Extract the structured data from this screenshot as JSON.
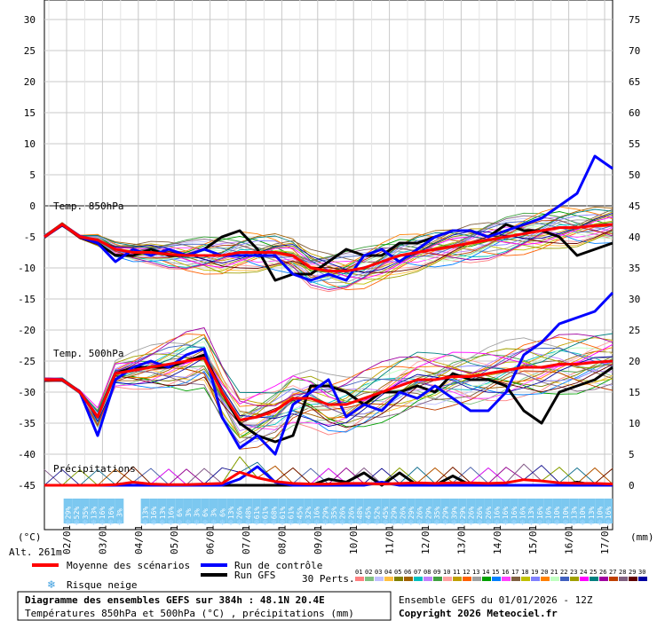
{
  "chart_data": {
    "type": "line",
    "title": "Diagramme des ensembles GEFS sur 384h : 48.1N 20.4E",
    "subtitle": "Températures 850hPa et 500hPa (°C) , précipitations (mm)",
    "run_label": "Ensemble GEFS du 01/01/2026 - 12Z",
    "copyright": "Copyright 2026 Meteociel.fr",
    "altitude": "Alt. 261m",
    "left_unit": "(°C)",
    "right_unit": "(mm)",
    "left_ticks": [
      30,
      25,
      20,
      15,
      10,
      5,
      0,
      -5,
      -10,
      -15,
      -20,
      -25,
      -30,
      -35,
      -40,
      -45
    ],
    "right_ticks": [
      75,
      70,
      65,
      60,
      55,
      50,
      45,
      40,
      35,
      30,
      25,
      20,
      15,
      10,
      5,
      0
    ],
    "ylim": [
      -45,
      30
    ],
    "x_ticks": [
      "02/01",
      "03/01",
      "04/01",
      "05/01",
      "06/01",
      "07/01",
      "08/01",
      "09/01",
      "10/01",
      "11/01",
      "12/01",
      "13/01",
      "14/01",
      "15/01",
      "16/01",
      "17/01"
    ],
    "section_labels": {
      "t850": "Temp. 850hPa",
      "t500": "Temp. 500hPa",
      "precip": "Précipitations"
    },
    "snow_risk": [
      "",
      "29%",
      "52%",
      "35%",
      "13%",
      "16%",
      "16%",
      "3%",
      "",
      "",
      "13%",
      "16%",
      "13%",
      "16%",
      "6%",
      "3%",
      "3%",
      "6%",
      "3%",
      "6%",
      "13%",
      "26%",
      "48%",
      "61%",
      "61%",
      "68%",
      "61%",
      "61%",
      "45%",
      "32%",
      "16%",
      "29%",
      "35%",
      "26%",
      "26%",
      "48%",
      "45%",
      "52%",
      "45%",
      "29%",
      "26%",
      "29%",
      "26%",
      "29%",
      "35%",
      "29%",
      "39%",
      "29%",
      "26%",
      "26%",
      "26%",
      "16%",
      "16%",
      "16%",
      "16%",
      "13%",
      "16%",
      "16%",
      "10%",
      "10%",
      "13%",
      "10%",
      "13%",
      "10%",
      "16%"
    ],
    "series": [
      {
        "name": "Moyenne des scénarios",
        "color": "#ff0000",
        "t850": [
          -5,
          -3,
          -5,
          -5.5,
          -7,
          -7.5,
          -7.5,
          -7.8,
          -8,
          -8,
          -8,
          -7.5,
          -7.5,
          -7.5,
          -8,
          -10,
          -10.5,
          -10.5,
          -10,
          -9,
          -8,
          -7.5,
          -7,
          -6.5,
          -6,
          -5.5,
          -5,
          -4.5,
          -4,
          -3.5,
          -3.5,
          -3.2,
          -3
        ],
        "t500": [
          -28,
          -28,
          -30,
          -34,
          -27,
          -26.5,
          -26,
          -25.5,
          -25,
          -24.5,
          -30,
          -34.5,
          -34,
          -33,
          -31,
          -31,
          -32,
          -32,
          -31,
          -30,
          -29,
          -28,
          -28,
          -27.5,
          -27.5,
          -27,
          -26.5,
          -26,
          -26,
          -25.5,
          -25.5,
          -25.2,
          -25
        ],
        "precip": [
          0,
          0,
          0,
          0,
          0.1,
          0.5,
          0.2,
          0.1,
          0.1,
          0.2,
          0.3,
          2.1,
          1.2,
          0.6,
          0.3,
          0.2,
          0.2,
          0.3,
          0.3,
          0.2,
          0.3,
          0.4,
          0.3,
          0.4,
          0.4,
          0.3,
          0.4,
          0.9,
          0.7,
          0.4,
          0.3,
          0.3,
          0.2
        ]
      },
      {
        "name": "Run de contrôle",
        "color": "#0000ff",
        "t850": [
          -5,
          -3,
          -5,
          -6,
          -9,
          -7,
          -8,
          -7,
          -8,
          -7,
          -8,
          -8,
          -8,
          -8,
          -11,
          -12,
          -11,
          -12,
          -8,
          -7,
          -9,
          -7,
          -5,
          -4,
          -4,
          -5,
          -4,
          -3,
          -2,
          0,
          2,
          8,
          6
        ],
        "t500": [
          -28,
          -28,
          -30,
          -37,
          -28,
          -26,
          -25,
          -26,
          -24,
          -23,
          -34,
          -39,
          -37,
          -40,
          -32,
          -30,
          -28,
          -34,
          -32,
          -33,
          -30,
          -31,
          -29,
          -31,
          -33,
          -33,
          -30,
          -24,
          -22,
          -19,
          -18,
          -17,
          -14
        ],
        "precip": [
          0,
          0,
          0,
          0,
          0,
          0,
          0,
          0,
          0,
          0,
          0,
          1,
          3,
          0.5,
          0,
          0,
          0,
          0,
          0,
          0.5,
          0,
          0,
          0,
          0,
          0,
          0,
          0,
          0,
          0,
          0,
          0,
          0,
          0
        ]
      },
      {
        "name": "Run GFS",
        "color": "#000000",
        "t850": [
          -5,
          -3,
          -5,
          -6,
          -8,
          -8,
          -7,
          -8,
          -8,
          -7,
          -5,
          -4,
          -7,
          -12,
          -11,
          -11,
          -9,
          -7,
          -8,
          -8,
          -6,
          -6,
          -5,
          -4,
          -4,
          -5,
          -3,
          -4,
          -4,
          -5,
          -8,
          -7,
          -6
        ],
        "t500": [
          -28,
          -28,
          -30,
          -34,
          -27,
          -26,
          -26,
          -26,
          -25,
          -24,
          -30,
          -35,
          -37,
          -38,
          -37,
          -29,
          -29,
          -30,
          -32,
          -30,
          -30,
          -29,
          -30,
          -27,
          -28,
          -28,
          -29,
          -33,
          -35,
          -30,
          -29,
          -28,
          -26
        ],
        "precip": [
          0,
          0,
          0,
          0,
          0,
          0,
          0,
          0,
          0,
          0,
          0,
          0,
          0,
          0,
          0,
          0,
          1,
          0.5,
          2,
          0,
          2,
          0,
          0,
          1.5,
          0,
          0,
          0,
          0,
          0,
          0,
          0.5,
          0,
          0
        ]
      }
    ],
    "legend": {
      "mean": "Moyenne des scénarios",
      "control": "Run de contrôle",
      "gfs": "Run GFS",
      "snow": "Risque neige",
      "perts": "30 Perts."
    },
    "perturbation_labels": [
      "01",
      "02",
      "03",
      "04",
      "05",
      "06",
      "07",
      "08",
      "09",
      "10",
      "11",
      "12",
      "13",
      "14",
      "15",
      "16",
      "17",
      "18",
      "19",
      "20",
      "21",
      "22",
      "23",
      "24",
      "25",
      "26",
      "27",
      "28",
      "29",
      "30"
    ],
    "perturbation_colors": [
      "#ff8080",
      "#80c080",
      "#c0c0ff",
      "#ffc040",
      "#808000",
      "#a06000",
      "#00c0c0",
      "#c080ff",
      "#40a040",
      "#ffa0a0",
      "#c0a000",
      "#ff6000",
      "#a0a0a0",
      "#00a000",
      "#0080ff",
      "#ff40ff",
      "#806040",
      "#c0c000",
      "#8080ff",
      "#ff8000",
      "#c0ffc0",
      "#4060c0",
      "#a0a000",
      "#ff00ff",
      "#008080",
      "#a000a0",
      "#c04000",
      "#806080",
      "#600000",
      "#0000a0"
    ],
    "grid": true
  }
}
